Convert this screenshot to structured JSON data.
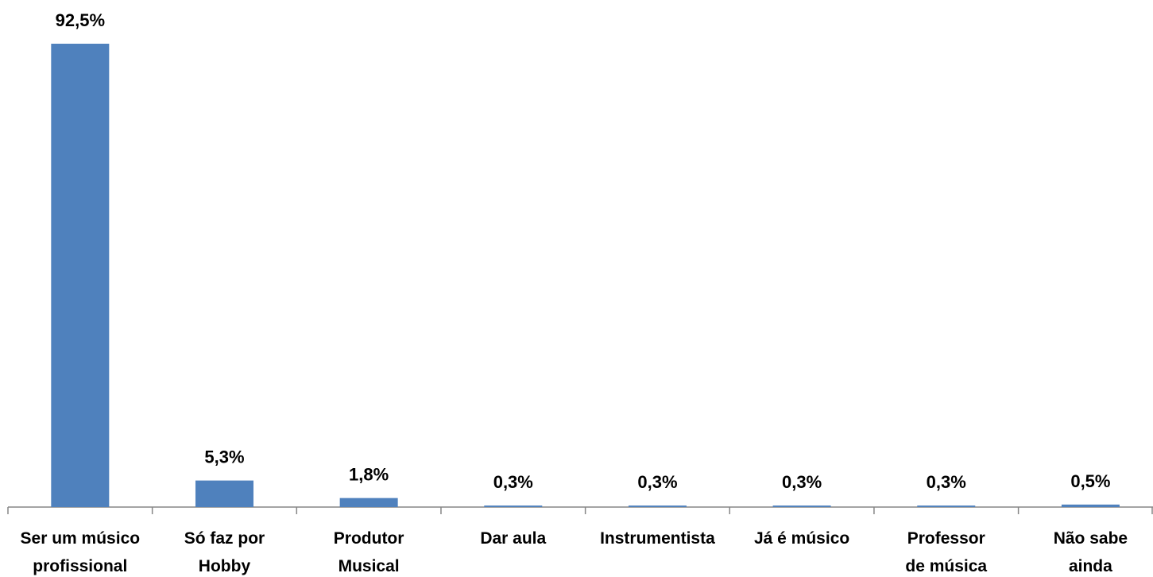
{
  "chart_data": {
    "type": "bar",
    "categories": [
      "Ser um músico\nprofissional",
      "Só faz por\nHobby",
      "Produtor\nMusical",
      "Dar aula",
      "Instrumentista",
      "Já é músico",
      "Professor\nde música",
      "Não sabe\nainda"
    ],
    "values": [
      92.5,
      5.3,
      1.8,
      0.3,
      0.3,
      0.3,
      0.3,
      0.5
    ],
    "value_labels": [
      "92,5%",
      "5,3%",
      "1,8%",
      "0,3%",
      "0,3%",
      "0,3%",
      "0,3%",
      "0,5%"
    ],
    "color": "#4f81bd"
  }
}
